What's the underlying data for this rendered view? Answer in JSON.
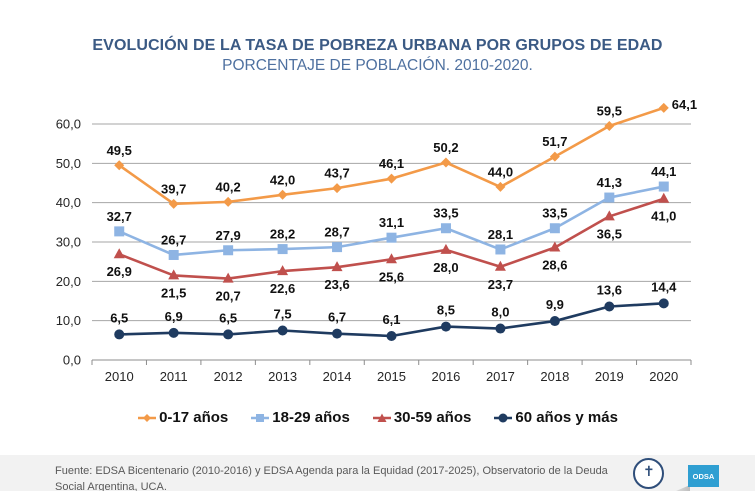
{
  "title": "EVOLUCIÓN DE LA TASA DE POBREZA URBANA POR GRUPOS DE EDAD",
  "subtitle": "PORCENTAJE DE POBLACIÓN. 2010-2020.",
  "chart_data": {
    "type": "line",
    "title": "EVOLUCIÓN DE LA TASA DE POBREZA URBANA POR GRUPOS DE EDAD",
    "subtitle": "PORCENTAJE DE POBLACIÓN. 2010-2020.",
    "xlabel": "",
    "ylabel": "",
    "x": [
      "2010",
      "2011",
      "2012",
      "2013",
      "2014",
      "2015",
      "2016",
      "2017",
      "2018",
      "2019",
      "2020"
    ],
    "ylim": [
      0,
      60
    ],
    "yticks": [
      0,
      10,
      20,
      30,
      40,
      50,
      60
    ],
    "ytick_labels": [
      "0,0",
      "10,0",
      "20,0",
      "30,0",
      "40,0",
      "50,0",
      "60,0"
    ],
    "grid": true,
    "legend_position": "bottom",
    "series": [
      {
        "name": "0-17 años",
        "color": "#f39a48",
        "marker": "diamond",
        "values": [
          49.5,
          39.7,
          40.2,
          42.0,
          43.7,
          46.1,
          50.2,
          44.0,
          51.7,
          59.5,
          64.1
        ],
        "labels": [
          "49,5",
          "39,7",
          "40,2",
          "42,0",
          "43,7",
          "46,1",
          "50,2",
          "44,0",
          "51,7",
          "59,5",
          "64,1"
        ]
      },
      {
        "name": "18-29 años",
        "color": "#8eb4e3",
        "marker": "square",
        "values": [
          32.7,
          26.7,
          27.9,
          28.2,
          28.7,
          31.1,
          33.5,
          28.1,
          33.5,
          41.3,
          44.1
        ],
        "labels": [
          "32,7",
          "26,7",
          "27,9",
          "28,2",
          "28,7",
          "31,1",
          "33,5",
          "28,1",
          "33,5",
          "41,3",
          "44,1"
        ]
      },
      {
        "name": "30-59 años",
        "color": "#c0504d",
        "marker": "triangle",
        "values": [
          26.9,
          21.5,
          20.7,
          22.6,
          23.6,
          25.6,
          28.0,
          23.7,
          28.6,
          36.5,
          41.0
        ],
        "labels": [
          "26,9",
          "21,5",
          "20,7",
          "22,6",
          "23,6",
          "25,6",
          "28,0",
          "23,7",
          "28,6",
          "36,5",
          "41,0"
        ]
      },
      {
        "name": "60 años y más",
        "color": "#1f3b60",
        "marker": "circle",
        "values": [
          6.5,
          6.9,
          6.5,
          7.5,
          6.7,
          6.1,
          8.5,
          8.0,
          9.9,
          13.6,
          14.4
        ],
        "labels": [
          "6,5",
          "6,9",
          "6,5",
          "7,5",
          "6,7",
          "6,1",
          "8,5",
          "8,0",
          "9,9",
          "13,6",
          "14,4"
        ]
      }
    ]
  },
  "legend": [
    {
      "label": "0-17 años"
    },
    {
      "label": "18-29 años"
    },
    {
      "label": "30-59 años"
    },
    {
      "label": "60 años y más"
    }
  ],
  "footer": {
    "source": "Fuente: EDSA Bicentenario (2010-2016) y EDSA Agenda para la Equidad (2017-2025), Observatorio de la Deuda Social Argentina, UCA.",
    "logo_text": "ODSA"
  }
}
